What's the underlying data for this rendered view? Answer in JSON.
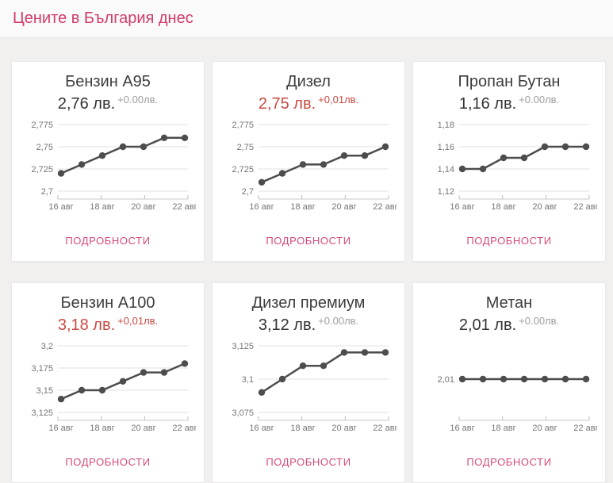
{
  "page": {
    "title": "Цените в България днес"
  },
  "labels": {
    "details": "ПОДРОБНОСТИ"
  },
  "colors": {
    "accent_pink": "#d23c6a",
    "details_pink": "#d5497c",
    "price_changed_red": "#c84a42",
    "price_neutral": "#333333",
    "delta_neutral": "#9e9e9e",
    "chart_line": "#4d4d4d",
    "chart_grid": "#e0e0e0",
    "axis_text": "#757575",
    "page_bg": "#f1f0ef",
    "card_bg": "#ffffff"
  },
  "cards": [
    {
      "title": "Бензин А95",
      "price": "2,76 лв.",
      "delta": "+0.00лв.",
      "changed": false
    },
    {
      "title": "Дизел",
      "price": "2,75 лв.",
      "delta": "+0,01лв.",
      "changed": true
    },
    {
      "title": "Пропан Бутан",
      "price": "1,16 лв.",
      "delta": "+0.00лв.",
      "changed": false
    },
    {
      "title": "Бензин А100",
      "price": "3,18 лв.",
      "delta": "+0,01лв.",
      "changed": true
    },
    {
      "title": "Дизел премиум",
      "price": "3,12 лв.",
      "delta": "+0.00лв.",
      "changed": false
    },
    {
      "title": "Метан",
      "price": "2,01 лв.",
      "delta": "+0.00лв.",
      "changed": false
    }
  ],
  "chart_data": [
    {
      "type": "line",
      "title": "Бензин А95",
      "x": [
        "16 авг",
        "17 авг",
        "18 авг",
        "19 авг",
        "20 авг",
        "21 авг",
        "22 авг"
      ],
      "values": [
        2.72,
        2.73,
        2.74,
        2.75,
        2.75,
        2.76,
        2.76
      ],
      "ylim": [
        2.7,
        2.775
      ],
      "y_ticks": [
        2.7,
        2.725,
        2.75,
        2.775
      ],
      "y_tick_labels": [
        "2,7",
        "2,725",
        "2,75",
        "2,775"
      ],
      "x_tick_labels": [
        "16 авг",
        "18 авг",
        "20 авг",
        "22 авг"
      ],
      "grid": true,
      "legend": false
    },
    {
      "type": "line",
      "title": "Дизел",
      "x": [
        "16 авг",
        "17 авг",
        "18 авг",
        "19 авг",
        "20 авг",
        "21 авг",
        "22 авг"
      ],
      "values": [
        2.71,
        2.72,
        2.73,
        2.73,
        2.74,
        2.74,
        2.75
      ],
      "ylim": [
        2.7,
        2.775
      ],
      "y_ticks": [
        2.7,
        2.725,
        2.75,
        2.775
      ],
      "y_tick_labels": [
        "2,7",
        "2,725",
        "2,75",
        "2,775"
      ],
      "x_tick_labels": [
        "16 авг",
        "18 авг",
        "20 авг",
        "22 авг"
      ],
      "grid": true,
      "legend": false
    },
    {
      "type": "line",
      "title": "Пропан Бутан",
      "x": [
        "16 авг",
        "17 авг",
        "18 авг",
        "19 авг",
        "20 авг",
        "21 авг",
        "22 авг"
      ],
      "values": [
        1.14,
        1.14,
        1.15,
        1.15,
        1.16,
        1.16,
        1.16
      ],
      "ylim": [
        1.12,
        1.18
      ],
      "y_ticks": [
        1.12,
        1.14,
        1.16,
        1.18
      ],
      "y_tick_labels": [
        "1,12",
        "1,14",
        "1,16",
        "1,18"
      ],
      "x_tick_labels": [
        "16 авг",
        "18 авг",
        "20 авг",
        "22 авг"
      ],
      "grid": true,
      "legend": false
    },
    {
      "type": "line",
      "title": "Бензин А100",
      "x": [
        "16 авг",
        "17 авг",
        "18 авг",
        "19 авг",
        "20 авг",
        "21 авг",
        "22 авг"
      ],
      "values": [
        3.14,
        3.15,
        3.15,
        3.16,
        3.17,
        3.17,
        3.18
      ],
      "ylim": [
        3.125,
        3.2
      ],
      "y_ticks": [
        3.125,
        3.15,
        3.175,
        3.2
      ],
      "y_tick_labels": [
        "3,125",
        "3,15",
        "3,175",
        "3,2"
      ],
      "x_tick_labels": [
        "16 авг",
        "18 авг",
        "20 авг",
        "22 авг"
      ],
      "grid": true,
      "legend": false
    },
    {
      "type": "line",
      "title": "Дизел премиум",
      "x": [
        "16 авг",
        "17 авг",
        "18 авг",
        "19 авг",
        "20 авг",
        "21 авг",
        "22 авг"
      ],
      "values": [
        3.09,
        3.1,
        3.11,
        3.11,
        3.12,
        3.12,
        3.12
      ],
      "ylim": [
        3.075,
        3.125
      ],
      "y_ticks": [
        3.075,
        3.1,
        3.125
      ],
      "y_tick_labels": [
        "3,075",
        "3,1",
        "3,125"
      ],
      "x_tick_labels": [
        "16 авг",
        "18 авг",
        "20 авг",
        "22 авг"
      ],
      "grid": true,
      "legend": false
    },
    {
      "type": "line",
      "title": "Метан",
      "x": [
        "16 авг",
        "17 авг",
        "18 авг",
        "19 авг",
        "20 авг",
        "21 авг",
        "22 авг"
      ],
      "values": [
        2.01,
        2.01,
        2.01,
        2.01,
        2.01,
        2.01,
        2.01
      ],
      "ylim": [
        2.0,
        2.02
      ],
      "y_ticks": [
        2.01
      ],
      "y_tick_labels": [
        "2,01"
      ],
      "x_tick_labels": [
        "16 авг",
        "18 авг",
        "20 авг",
        "22 авг"
      ],
      "grid": false,
      "legend": false
    }
  ]
}
